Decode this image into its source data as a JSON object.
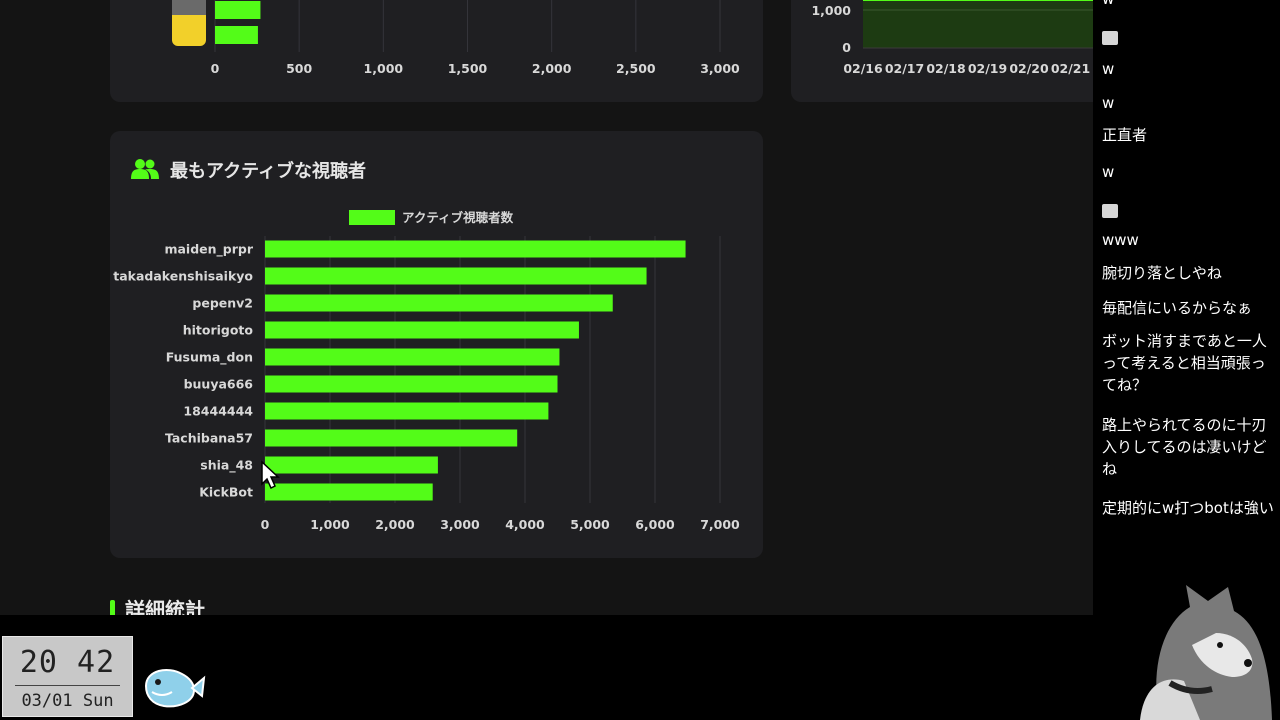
{
  "top_bar_chart": {
    "type": "bar",
    "orientation": "horizontal",
    "values": [
      270,
      255
    ],
    "x_ticks": [
      "0",
      "500",
      "1,000",
      "1,500",
      "2,000",
      "2,500",
      "3,000"
    ],
    "xlim": [
      0,
      3000
    ],
    "bar_color": "#53fc18"
  },
  "top_right_chart": {
    "type": "area",
    "y_ticks": [
      "1,000",
      "0"
    ],
    "x_ticks": [
      "02/16",
      "02/17",
      "02/18",
      "02/19",
      "02/20",
      "02/21"
    ],
    "fill_color": "#1d3b12",
    "line_color": "#53fc18"
  },
  "active_viewers": {
    "title": "最もアクティブな視聴者",
    "icon": "users-icon",
    "accent": "#53fc18",
    "legend": "アクティブ視聴者数",
    "chart_data": {
      "type": "bar",
      "orientation": "horizontal",
      "categories": [
        "maiden_prpr",
        "takadakenshisaikyo",
        "pepenv2",
        "hitorigoto",
        "Fusuma_don",
        "buuya666",
        "18444444",
        "Tachibana57",
        "shia_48",
        "KickBot"
      ],
      "series": [
        {
          "name": "アクティブ視聴者数",
          "values": [
            6470,
            5870,
            5350,
            4830,
            4530,
            4500,
            4360,
            3880,
            2660,
            2580
          ]
        }
      ],
      "x_ticks": [
        "0",
        "1,000",
        "2,000",
        "3,000",
        "4,000",
        "5,000",
        "6,000",
        "7,000"
      ],
      "xlim": [
        0,
        7000
      ],
      "grid": true,
      "legend_position": "top",
      "bar_color": "#53fc18"
    }
  },
  "section": {
    "title": "詳細統計"
  },
  "chat": {
    "messages": [
      {
        "type": "text",
        "text": "w"
      },
      {
        "type": "emote"
      },
      {
        "type": "text",
        "text": "w"
      },
      {
        "type": "text",
        "text": "w"
      },
      {
        "type": "text",
        "text": "正直者"
      },
      {
        "type": "text",
        "text": "w"
      },
      {
        "type": "emote"
      },
      {
        "type": "text",
        "text": "www"
      },
      {
        "type": "text",
        "text": "腕切り落としやね"
      },
      {
        "type": "text",
        "text": "毎配信にいるからなぁ"
      },
      {
        "type": "text",
        "text": "ボット消すまであと一人って考えると相当頑張ってね？"
      },
      {
        "type": "text",
        "text": "路上やられてるのに十刃入りしてるのは凄いけどね"
      },
      {
        "type": "text",
        "text": "定期的にw打つbotは強い"
      }
    ]
  },
  "clock": {
    "time": "20 42",
    "date": "03/01 Sun"
  }
}
